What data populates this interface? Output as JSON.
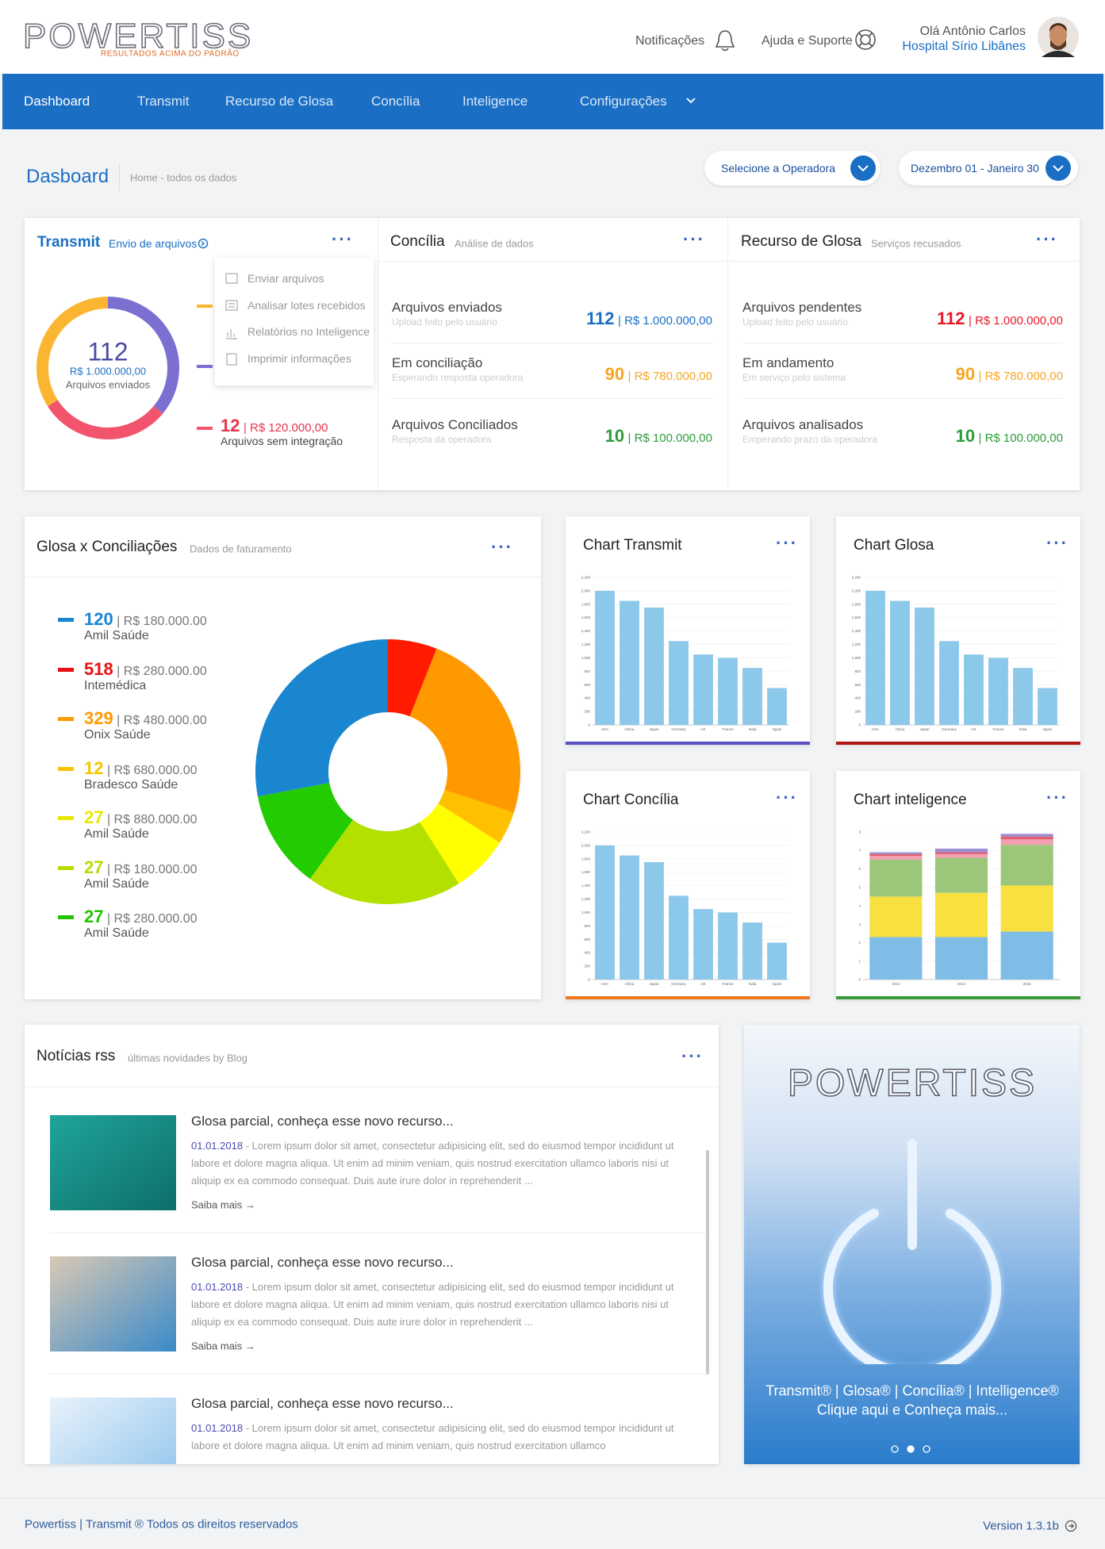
{
  "header": {
    "logo": "POWERTISS",
    "tagline": "RESULTADOS ACIMA DO PADRÃO",
    "notifications": "Notificações",
    "help": "Ajuda e Suporte",
    "greeting": "Olá Antônio Carlos",
    "hospital": "Hospital Sírio Libânes"
  },
  "nav": [
    "Dashboard",
    "Transmit",
    "Recurso de Glosa",
    "Concília",
    "Inteligence",
    "Configurações"
  ],
  "page": {
    "title": "Dasboard",
    "breadcrumb": "Home - todos os dados",
    "operator": "Selecione a Operadora",
    "dates": "Dezembro 01 - Janeiro 30"
  },
  "transmit": {
    "title": "Transmit",
    "subtitle": "Envio de arquivos",
    "menu": [
      "Enviar arquivos",
      "Analisar lotes recebidos",
      "Relatórios no Inteligence",
      "Imprimir informações"
    ],
    "center": {
      "value": "112",
      "amount": "R$ 1.000.000,00",
      "label": "Arquivos enviados"
    },
    "legend": [
      {
        "value": "12",
        "amount": "| R$ 120.000,00",
        "label": "Arquivos sem integração"
      }
    ],
    "chart": {
      "type": "donut",
      "segments": [
        {
          "color": "#7b6fd2",
          "value": 36
        },
        {
          "color": "#f2546e",
          "value": 30
        },
        {
          "color": "#fbb631",
          "value": 34
        }
      ]
    }
  },
  "concilia": {
    "title": "Concília",
    "subtitle": "Análise de dados",
    "rows": [
      {
        "label": "Arquivos enviados",
        "sub": "Upload feito pelo usuário",
        "count": "112",
        "amount": "| R$ 1.000.000,00"
      },
      {
        "label": "Em conciliação",
        "sub": "Esperando resposta operadora",
        "count": "90",
        "amount": "| R$ 780.000,00"
      },
      {
        "label": "Arquivos Conciliados",
        "sub": "Resposta da operadora",
        "count": "10",
        "amount": "| R$ 100.000,00"
      }
    ]
  },
  "recurso": {
    "title": "Recurso de Glosa",
    "subtitle": "Serviços recusados",
    "rows": [
      {
        "label": "Arquivos pendentes",
        "sub": "Upload feito pelo usuário",
        "count": "112",
        "amount": "| R$ 1.000.000,00"
      },
      {
        "label": "Em andamento",
        "sub": "Em serviço pelo sistema",
        "count": "90",
        "amount": "| R$ 780.000,00"
      },
      {
        "label": "Arquivos analisados",
        "sub": "Emperando prazo da operadora",
        "count": "10",
        "amount": "| R$ 100.000,00"
      }
    ]
  },
  "glosa": {
    "title": "Glosa x Conciliações",
    "subtitle": "Dados de faturamento",
    "legend": [
      {
        "value": "120",
        "amount": "| R$ 180.000.00",
        "label": "Amil Saúde",
        "color": "#1a86d0"
      },
      {
        "value": "518",
        "amount": "| R$ 280.000.00",
        "label": "Intemédica",
        "color": "#e81010"
      },
      {
        "value": "329",
        "amount": "| R$ 480.000.00",
        "label": "Onix Saúde",
        "color": "#ff9900"
      },
      {
        "value": "12",
        "amount": "| R$ 680.000.00",
        "label": "Bradesco Saúde",
        "color": "#f5c400"
      },
      {
        "value": "27",
        "amount": "| R$ 880.000.00",
        "label": "Amil Saúde",
        "color": "#e8e800"
      },
      {
        "value": "27",
        "amount": "| R$ 180.000.00",
        "label": "Amil Saúde",
        "color": "#b4dc00"
      },
      {
        "value": "27",
        "amount": "| R$ 280.000.00",
        "label": "Amil Saúde",
        "color": "#22c400"
      }
    ],
    "chart": {
      "type": "donut",
      "segments": [
        {
          "color": "#ff1a00",
          "value": 6
        },
        {
          "color": "#ff9900",
          "value": 24
        },
        {
          "color": "#ffc000",
          "value": 4
        },
        {
          "color": "#ffff00",
          "value": 7
        },
        {
          "color": "#b4e000",
          "value": 19
        },
        {
          "color": "#22cc00",
          "value": 12
        },
        {
          "color": "#1a86d0",
          "value": 28
        }
      ]
    }
  },
  "charts": [
    {
      "type": "bar",
      "title": "Chart Transmit",
      "color": "#8cc8ea",
      "categories": [
        "USA",
        "China",
        "Japan",
        "Germany",
        "UK",
        "France",
        "India",
        "Spain"
      ],
      "values": [
        2000,
        1850,
        1750,
        1250,
        1050,
        1000,
        850,
        550
      ],
      "ylim": [
        0,
        2200
      ],
      "yticks": [
        0,
        200,
        400,
        600,
        800,
        {
          "value": 1000,
          "label": "1,000"
        },
        {
          "value": 1200,
          "label": "1,200"
        },
        {
          "value": 1400,
          "label": "1,400"
        },
        {
          "value": 1600,
          "label": "1,600"
        },
        {
          "value": 1800,
          "label": "1,800"
        },
        {
          "value": 2000,
          "label": "2,000"
        },
        {
          "value": 2200,
          "label": "2,200"
        }
      ]
    },
    {
      "type": "bar",
      "title": "Chart Glosa",
      "color": "#8cc8ea",
      "categories": [
        "USA",
        "China",
        "Japan",
        "Germany",
        "UK",
        "France",
        "India",
        "Spain"
      ],
      "values": [
        2000,
        1850,
        1750,
        1250,
        1050,
        1000,
        850,
        550
      ],
      "ylim": [
        0,
        2200
      ],
      "yticks": [
        0,
        200,
        400,
        600,
        800,
        {
          "value": 1000,
          "label": "1,000"
        },
        {
          "value": 1200,
          "label": "1,200"
        },
        {
          "value": 1400,
          "label": "1,400"
        },
        {
          "value": 1600,
          "label": "1,600"
        },
        {
          "value": 1800,
          "label": "1,800"
        },
        {
          "value": 2000,
          "label": "2,000"
        },
        {
          "value": 2200,
          "label": "2,200"
        }
      ]
    },
    {
      "type": "bar",
      "title": "Chart Concília",
      "color": "#8cc8ea",
      "categories": [
        "USA",
        "China",
        "Japan",
        "Germany",
        "UK",
        "France",
        "India",
        "Spain"
      ],
      "values": [
        2000,
        1850,
        1750,
        1250,
        1050,
        1000,
        850,
        550
      ],
      "ylim": [
        0,
        2200
      ],
      "yticks": [
        0,
        200,
        400,
        600,
        800,
        {
          "value": 1000,
          "label": "1,000"
        },
        {
          "value": 1200,
          "label": "1,200"
        },
        {
          "value": 1400,
          "label": "1,400"
        },
        {
          "value": 1600,
          "label": "1,600"
        },
        {
          "value": 1800,
          "label": "1,800"
        },
        {
          "value": 2000,
          "label": "2,000"
        },
        {
          "value": 2200,
          "label": "2,200"
        }
      ]
    },
    {
      "type": "stacked",
      "title": "Chart inteligence",
      "categories": [
        "2013",
        "2014",
        "2015"
      ],
      "ylim": [
        0,
        8
      ],
      "yticks": [
        0,
        1,
        2,
        3,
        4,
        5,
        6,
        7,
        8
      ],
      "series": [
        {
          "color": "#7fbce6",
          "values": [
            2.3,
            2.3,
            2.6
          ]
        },
        {
          "color": "#f7e040",
          "values": [
            2.2,
            2.4,
            2.5
          ]
        },
        {
          "color": "#9cc67a",
          "values": [
            2.0,
            1.9,
            2.2
          ]
        },
        {
          "color": "#f0a0b0",
          "values": [
            0.2,
            0.2,
            0.3
          ]
        },
        {
          "color": "#e06070",
          "values": [
            0.1,
            0.1,
            0.15
          ]
        },
        {
          "color": "#9c8cd0",
          "values": [
            0.1,
            0.2,
            0.15
          ]
        }
      ]
    }
  ],
  "news": {
    "title": "Notícias rss",
    "subtitle": "últimas novidades by Blog",
    "items": [
      {
        "title": "Glosa parcial, conheça esse novo recurso...",
        "date": "01.01.2018",
        "text": "- Lorem ipsum dolor sit amet, consectetur adipisicing elit, sed do eiusmod tempor incididunt ut labore et dolore magna aliqua. Ut enim ad minim veniam, quis nostrud exercitation ullamco laboris nisi ut aliquip ex ea commodo consequat. Duis aute irure dolor in reprehenderit ...",
        "link": "Saiba mais →"
      },
      {
        "title": "Glosa parcial, conheça esse novo recurso...",
        "date": "01.01.2018",
        "text": "- Lorem ipsum dolor sit amet, consectetur adipisicing elit, sed do eiusmod tempor incididunt ut labore et dolore magna aliqua. Ut enim ad minim veniam, quis nostrud exercitation ullamco laboris nisi ut aliquip ex ea commodo consequat. Duis aute irure dolor in reprehenderit ...",
        "link": "Saiba mais →"
      },
      {
        "title": "Glosa parcial, conheça esse novo recurso...",
        "date": "01.01.2018",
        "text": "- Lorem ipsum dolor sit amet, consectetur adipisicing elit, sed do eiusmod tempor incididunt ut labore et dolore magna aliqua. Ut enim ad minim veniam, quis nostrud exercitation ullamco"
      }
    ]
  },
  "promo": {
    "logo": "POWERTISS",
    "products": "Transmit® | Glosa® | Concília® | Intelligence®",
    "cta": "Clique aqui e Conheça mais..."
  },
  "footer": {
    "copyright": "Powertiss | Transmit ® Todos os direitos reservados",
    "version": "Version 1.3.1b"
  }
}
